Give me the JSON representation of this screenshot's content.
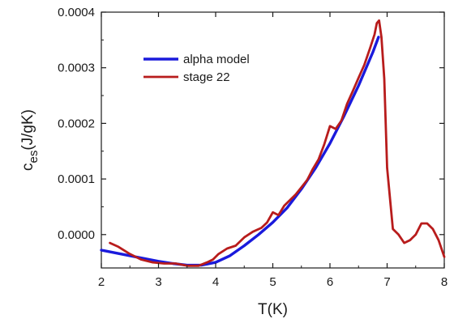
{
  "chart_data": {
    "type": "line",
    "xlabel": "T(K)",
    "ylabel": {
      "base": "c",
      "subscript": "es",
      "unit": "(J/gK)"
    },
    "xlim": [
      2,
      8
    ],
    "ylim": [
      -6e-05,
      0.0004
    ],
    "xticks": [
      2,
      3,
      4,
      5,
      6,
      7,
      8
    ],
    "xtick_labels": [
      "2",
      "3",
      "4",
      "5",
      "6",
      "7",
      "8"
    ],
    "yticks": [
      0.0,
      0.0001,
      0.0002,
      0.0003,
      0.0004
    ],
    "ytick_labels": [
      "0.0000",
      "0.0001",
      "0.0002",
      "0.0003",
      "0.0004"
    ],
    "grid": false,
    "legend_position": "top-left",
    "series": [
      {
        "name": "alpha model",
        "color": "#1a1adc",
        "x": [
          2.0,
          2.5,
          3.0,
          3.25,
          3.5,
          3.75,
          4.0,
          4.25,
          4.5,
          4.75,
          5.0,
          5.25,
          5.5,
          5.75,
          6.0,
          6.25,
          6.5,
          6.75,
          6.85
        ],
        "y": [
          -2.8e-05,
          -3.8e-05,
          -4.8e-05,
          -5.2e-05,
          -5.5e-05,
          -5.5e-05,
          -5e-05,
          -3.8e-05,
          -2e-05,
          0.0,
          2.2e-05,
          4.8e-05,
          8.2e-05,
          0.00012,
          0.000164,
          0.000214,
          0.000268,
          0.000328,
          0.000355
        ]
      },
      {
        "name": "stage 22",
        "color": "#b81c1c",
        "x": [
          2.15,
          2.3,
          2.5,
          2.7,
          2.9,
          3.1,
          3.3,
          3.5,
          3.7,
          3.85,
          3.95,
          4.05,
          4.2,
          4.35,
          4.5,
          4.65,
          4.8,
          4.9,
          5.0,
          5.1,
          5.2,
          5.3,
          5.4,
          5.5,
          5.6,
          5.7,
          5.8,
          5.9,
          6.0,
          6.1,
          6.2,
          6.3,
          6.4,
          6.5,
          6.6,
          6.7,
          6.78,
          6.82,
          6.86,
          6.9,
          6.95,
          7.0,
          7.1,
          7.2,
          7.3,
          7.4,
          7.5,
          7.6,
          7.7,
          7.8,
          7.9,
          8.0
        ],
        "y": [
          -1.5e-05,
          -2.2e-05,
          -3.5e-05,
          -4.5e-05,
          -5e-05,
          -5.2e-05,
          -5.2e-05,
          -5.6e-05,
          -5.6e-05,
          -5e-05,
          -4.5e-05,
          -3.5e-05,
          -2.5e-05,
          -2e-05,
          -5e-06,
          5e-06,
          1.2e-05,
          2.2e-05,
          4e-05,
          3.5e-05,
          5.2e-05,
          6.2e-05,
          7.2e-05,
          8.5e-05,
          9.8e-05,
          0.000118,
          0.000135,
          0.000162,
          0.000195,
          0.00019,
          0.000205,
          0.000235,
          0.000258,
          0.000282,
          0.000305,
          0.000335,
          0.00036,
          0.00038,
          0.000385,
          0.000355,
          0.00028,
          0.00012,
          1e-05,
          0.0,
          -1.5e-05,
          -1e-05,
          0.0,
          2e-05,
          2e-05,
          1e-05,
          -1e-05,
          -4e-05
        ]
      }
    ]
  }
}
